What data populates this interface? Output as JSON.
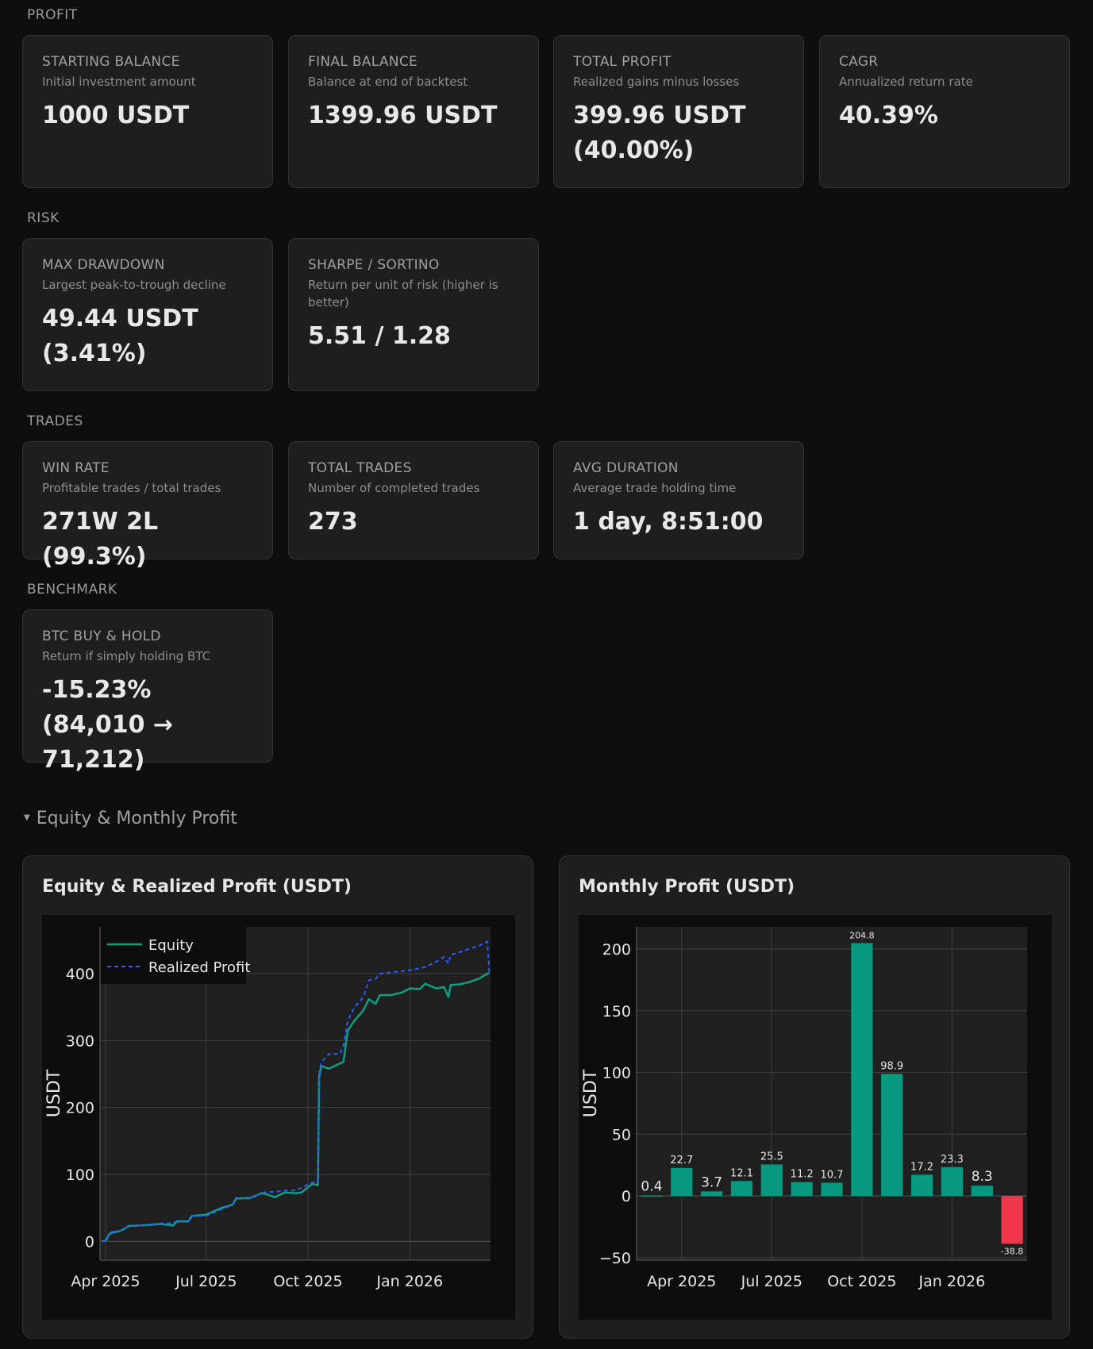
{
  "sections": {
    "profit": {
      "label": "PROFIT",
      "cards": [
        {
          "title": "STARTING BALANCE",
          "desc": "Initial investment amount",
          "value": "1000 USDT"
        },
        {
          "title": "FINAL BALANCE",
          "desc": "Balance at end of backtest",
          "value": "1399.96 USDT"
        },
        {
          "title": "TOTAL PROFIT",
          "desc": "Realized gains minus losses",
          "value": "399.96 USDT (40.00%)"
        },
        {
          "title": "CAGR",
          "desc": "Annualized return rate",
          "value": "40.39%"
        }
      ]
    },
    "risk": {
      "label": "RISK",
      "cards": [
        {
          "title": "MAX DRAWDOWN",
          "desc": "Largest peak-to-trough decline",
          "value": "49.44 USDT (3.41%)"
        },
        {
          "title": "SHARPE / SORTINO",
          "desc": "Return per unit of risk (higher is better)",
          "value": "5.51 / 1.28"
        }
      ]
    },
    "trades": {
      "label": "TRADES",
      "cards": [
        {
          "title": "WIN RATE",
          "desc": "Profitable trades / total trades",
          "value": "271W 2L (99.3%)"
        },
        {
          "title": "TOTAL TRADES",
          "desc": "Number of completed trades",
          "value": "273"
        },
        {
          "title": "AVG DURATION",
          "desc": "Average trade holding time",
          "value": "1 day, 8:51:00"
        }
      ]
    },
    "benchmark": {
      "label": "BENCHMARK",
      "cards": [
        {
          "title": "BTC BUY & HOLD",
          "desc": "Return if simply holding BTC",
          "value": "-15.23% (84,010 → 71,212)"
        }
      ]
    }
  },
  "expander": {
    "icon": "triangle-down-icon",
    "glyph": "▼",
    "label": "Equity & Monthly Profit",
    "expanded": true
  },
  "colors": {
    "equity": "#0e9e82",
    "realized": "#2b5cff",
    "bar_positive": "#069980",
    "bar_negative": "#f0374b"
  },
  "chart_data": [
    {
      "type": "line",
      "title": "Equity & Realized Profit (USDT)",
      "xlabel": "",
      "ylabel": "USDT",
      "ylim": [
        -28,
        470
      ],
      "xlim": [
        "2025-03-27",
        "2026-03-15"
      ],
      "yticks": [
        0,
        100,
        200,
        300,
        400
      ],
      "xticks": [
        {
          "date": "2025-04-01",
          "label": "Apr 2025"
        },
        {
          "date": "2025-07-01",
          "label": "Jul 2025"
        },
        {
          "date": "2025-10-01",
          "label": "Oct 2025"
        },
        {
          "date": "2026-01-01",
          "label": "Jan 2026"
        }
      ],
      "grid": true,
      "legend": "top-left",
      "series": [
        {
          "name": "Equity",
          "style": "solid"
        },
        {
          "name": "Realized Profit",
          "style": "dashed"
        }
      ],
      "x": [
        "2025-03-29",
        "2025-04-01",
        "2025-04-05",
        "2025-04-15",
        "2025-04-22",
        "2025-05-05",
        "2025-05-20",
        "2025-06-01",
        "2025-06-05",
        "2025-06-15",
        "2025-06-18",
        "2025-07-01",
        "2025-07-15",
        "2025-07-25",
        "2025-07-28",
        "2025-08-10",
        "2025-08-20",
        "2025-08-25",
        "2025-09-01",
        "2025-09-10",
        "2025-09-20",
        "2025-09-25",
        "2025-10-05",
        "2025-10-10",
        "2025-10-11",
        "2025-10-13",
        "2025-10-20",
        "2025-10-30",
        "2025-11-02",
        "2025-11-06",
        "2025-11-12",
        "2025-11-20",
        "2025-11-25",
        "2025-12-01",
        "2025-12-05",
        "2025-12-15",
        "2025-12-25",
        "2026-01-01",
        "2026-01-10",
        "2026-01-15",
        "2026-01-25",
        "2026-02-01",
        "2026-02-05",
        "2026-02-07",
        "2026-02-15",
        "2026-02-25",
        "2026-03-05",
        "2026-03-12",
        "2026-03-14"
      ],
      "equity": [
        0,
        1,
        12,
        16,
        23,
        24,
        26,
        24,
        30,
        30,
        38,
        40,
        50,
        55,
        64,
        65,
        72,
        70,
        66,
        73,
        72,
        73,
        86,
        84,
        245,
        262,
        258,
        266,
        268,
        315,
        330,
        345,
        362,
        355,
        368,
        368,
        372,
        378,
        377,
        385,
        378,
        380,
        365,
        383,
        384,
        388,
        393,
        400,
        401
      ],
      "realized": [
        0,
        1,
        14,
        16,
        23,
        24,
        27,
        27,
        31,
        30,
        38,
        38,
        48,
        55,
        65,
        65,
        72,
        74,
        74,
        76,
        76,
        80,
        88,
        90,
        250,
        268,
        280,
        280,
        292,
        330,
        350,
        365,
        390,
        392,
        400,
        402,
        404,
        405,
        408,
        410,
        418,
        425,
        415,
        428,
        432,
        438,
        442,
        448,
        400
      ]
    },
    {
      "type": "bar",
      "title": "Monthly Profit (USDT)",
      "xlabel": "",
      "ylabel": "USDT",
      "ylim": [
        -52,
        218
      ],
      "yticks": [
        -50,
        0,
        50,
        100,
        150,
        200
      ],
      "grid": true,
      "categories": [
        "2025-03",
        "2025-04",
        "2025-05",
        "2025-06",
        "2025-07",
        "2025-08",
        "2025-09",
        "2025-10",
        "2025-11",
        "2025-12",
        "2026-01",
        "2026-02",
        "2026-03"
      ],
      "values": [
        0.4,
        22.7,
        3.7,
        12.1,
        25.5,
        11.2,
        10.7,
        204.8,
        98.9,
        17.2,
        23.3,
        8.3,
        -38.8
      ],
      "labels": [
        "0.4",
        "22.7",
        "3.7",
        "12.1",
        "25.5",
        "11.2",
        "10.7",
        "204.8",
        "98.9",
        "17.2",
        "23.3",
        "8.3",
        "-38.8"
      ],
      "xticks": [
        {
          "index": 1,
          "label": "Apr 2025"
        },
        {
          "index": 4,
          "label": "Jul 2025"
        },
        {
          "index": 7,
          "label": "Oct 2025"
        },
        {
          "index": 10,
          "label": "Jan 2026"
        }
      ]
    }
  ]
}
